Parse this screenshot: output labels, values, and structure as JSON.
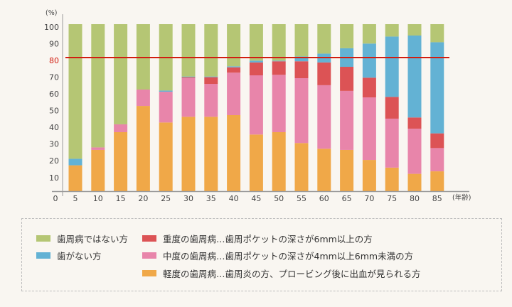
{
  "chart_data": {
    "type": "bar",
    "stacked": true,
    "ylabel": "(%)",
    "xlabel": "(年齢)",
    "ylim": [
      0,
      100
    ],
    "yticks": [
      "0",
      "10",
      "20",
      "30",
      "40",
      "50",
      "60",
      "70",
      "80",
      "90",
      "100"
    ],
    "highlight_line": {
      "value": 80,
      "color": "#d21d10"
    },
    "categories": [
      "5",
      "10",
      "15",
      "20",
      "25",
      "30",
      "35",
      "40",
      "45",
      "50",
      "55",
      "60",
      "65",
      "70",
      "75",
      "80",
      "85"
    ],
    "series": [
      {
        "name": "軽度の歯周病…歯周炎の方、プロービング後に出血が見られる方",
        "color": "#f0a848",
        "values": [
          15.6,
          24.8,
          35.4,
          51.1,
          41.2,
          44.6,
          44.6,
          45.6,
          34.0,
          35.4,
          28.9,
          25.5,
          24.8,
          18.8,
          14.2,
          10.5,
          12.0
        ]
      },
      {
        "name": "中度の歯周病…歯周ポケットの深さが4mm以上6mm未満の方",
        "color": "#e885aa",
        "values": [
          0,
          1.5,
          4.7,
          9.8,
          18.4,
          23.2,
          19.7,
          25.4,
          35.4,
          34.3,
          38.8,
          38.0,
          35.3,
          37.4,
          29.3,
          27.0,
          13.9
        ]
      },
      {
        "name": "重度の歯周病…歯周ポケットの深さが6mm以上の方",
        "color": "#dc5355",
        "values": [
          0,
          0,
          0,
          0,
          0,
          0.5,
          4.0,
          3.2,
          7.7,
          8.1,
          10.1,
          13.6,
          14.4,
          11.8,
          13.0,
          6.7,
          8.8
        ]
      },
      {
        "name": "歯がない方",
        "color": "#63b2d4",
        "values": [
          3.9,
          0,
          0,
          0,
          0.7,
          0.4,
          0.4,
          0.6,
          1.1,
          0.4,
          2.9,
          5.3,
          11.1,
          20.4,
          36.1,
          49.0,
          54.5
        ]
      },
      {
        "name": "歯周病ではない方",
        "color": "#b5c674",
        "values": [
          80.5,
          73.7,
          59.9,
          39.1,
          39.7,
          31.3,
          31.3,
          25.2,
          21.8,
          21.8,
          19.3,
          17.6,
          14.4,
          11.6,
          7.4,
          6.8,
          10.8
        ]
      }
    ],
    "legend": {
      "placement": "bottom"
    }
  },
  "legend_items": {
    "healthy": "歯周病ではない方",
    "no_teeth": "歯がない方",
    "severe": "重度の歯周病…歯周ポケットの深さが6mm以上の方",
    "moderate": "中度の歯周病…歯周ポケットの深さが4mm以上6mm未満の方",
    "mild": "軽度の歯周病…歯周炎の方、プロービング後に出血が見られる方"
  }
}
